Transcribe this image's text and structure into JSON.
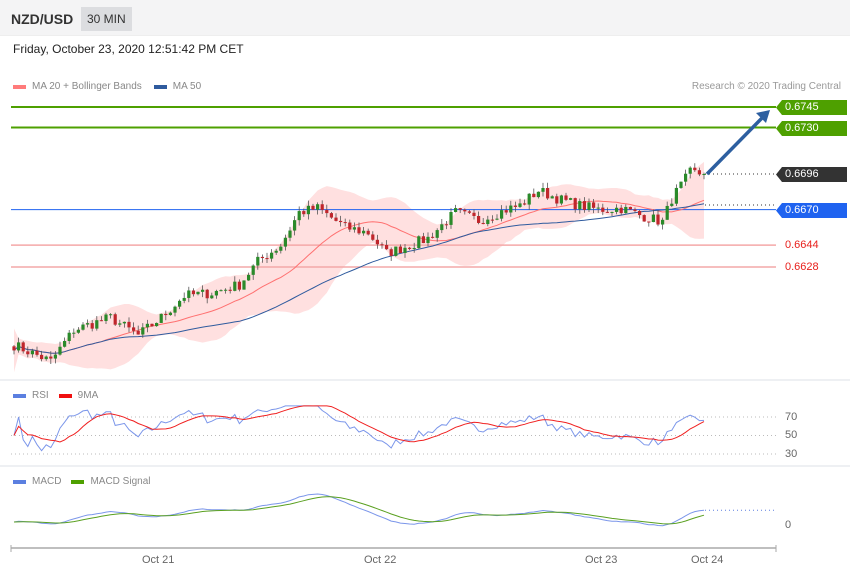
{
  "header": {
    "symbol": "NZD/USD",
    "timeframe": "30 MIN",
    "datetime": "Friday, October 23, 2020 12:51:42 PM CET"
  },
  "main_legend": [
    {
      "label": "MA 20 + Bollinger Bands",
      "color": "#ff7b7b"
    },
    {
      "label": "MA 50",
      "color": "#2f5b9e"
    }
  ],
  "copyright": "Research © 2020 Trading Central",
  "levels": {
    "r2": {
      "value": "0.6745",
      "color": "#4ea000"
    },
    "r1": {
      "value": "0.6730",
      "color": "#4ea000"
    },
    "last": {
      "value": "0.6696",
      "color": "#333333"
    },
    "pivot": {
      "value": "0.6670",
      "color": "#1f63f0"
    },
    "s1": {
      "value": "0.6644",
      "color": "#e8201c"
    },
    "s2": {
      "value": "0.6628",
      "color": "#e8201c"
    }
  },
  "rsi_legend": [
    {
      "label": "RSI",
      "color": "#5b7fe0"
    },
    {
      "label": "9MA",
      "color": "#f01010"
    }
  ],
  "rsi_ticks": [
    "70",
    "50",
    "30"
  ],
  "macd_legend": [
    {
      "label": "MACD",
      "color": "#5b7fe0"
    },
    {
      "label": "MACD Signal",
      "color": "#4ea000"
    }
  ],
  "macd_ticks": [
    "0"
  ],
  "x_ticks": [
    "Oct 21",
    "Oct 22",
    "Oct 23",
    "Oct 24"
  ],
  "chart_data": {
    "type": "candlestick",
    "interval": "30 MIN",
    "price_key_points": [
      [
        0,
        0.6571
      ],
      [
        8,
        0.6559
      ],
      [
        13,
        0.6582
      ],
      [
        21,
        0.6591
      ],
      [
        27,
        0.6578
      ],
      [
        32,
        0.6591
      ],
      [
        37,
        0.6607
      ],
      [
        43,
        0.6609
      ],
      [
        49,
        0.6615
      ],
      [
        53,
        0.6632
      ],
      [
        58,
        0.6644
      ],
      [
        62,
        0.6668
      ],
      [
        66,
        0.6671
      ],
      [
        72,
        0.6657
      ],
      [
        77,
        0.6653
      ],
      [
        81,
        0.6638
      ],
      [
        86,
        0.6644
      ],
      [
        90,
        0.6649
      ],
      [
        96,
        0.6668
      ],
      [
        101,
        0.6662
      ],
      [
        107,
        0.667
      ],
      [
        110,
        0.6673
      ],
      [
        114,
        0.6684
      ],
      [
        119,
        0.6677
      ],
      [
        123,
        0.6673
      ],
      [
        127,
        0.667
      ],
      [
        132,
        0.6671
      ],
      [
        136,
        0.6666
      ],
      [
        141,
        0.6661
      ],
      [
        143,
        0.6678
      ],
      [
        147,
        0.6697
      ],
      [
        150,
        0.6696
      ]
    ],
    "projection": {
      "from": 0.6696,
      "to": 0.6745
    }
  }
}
